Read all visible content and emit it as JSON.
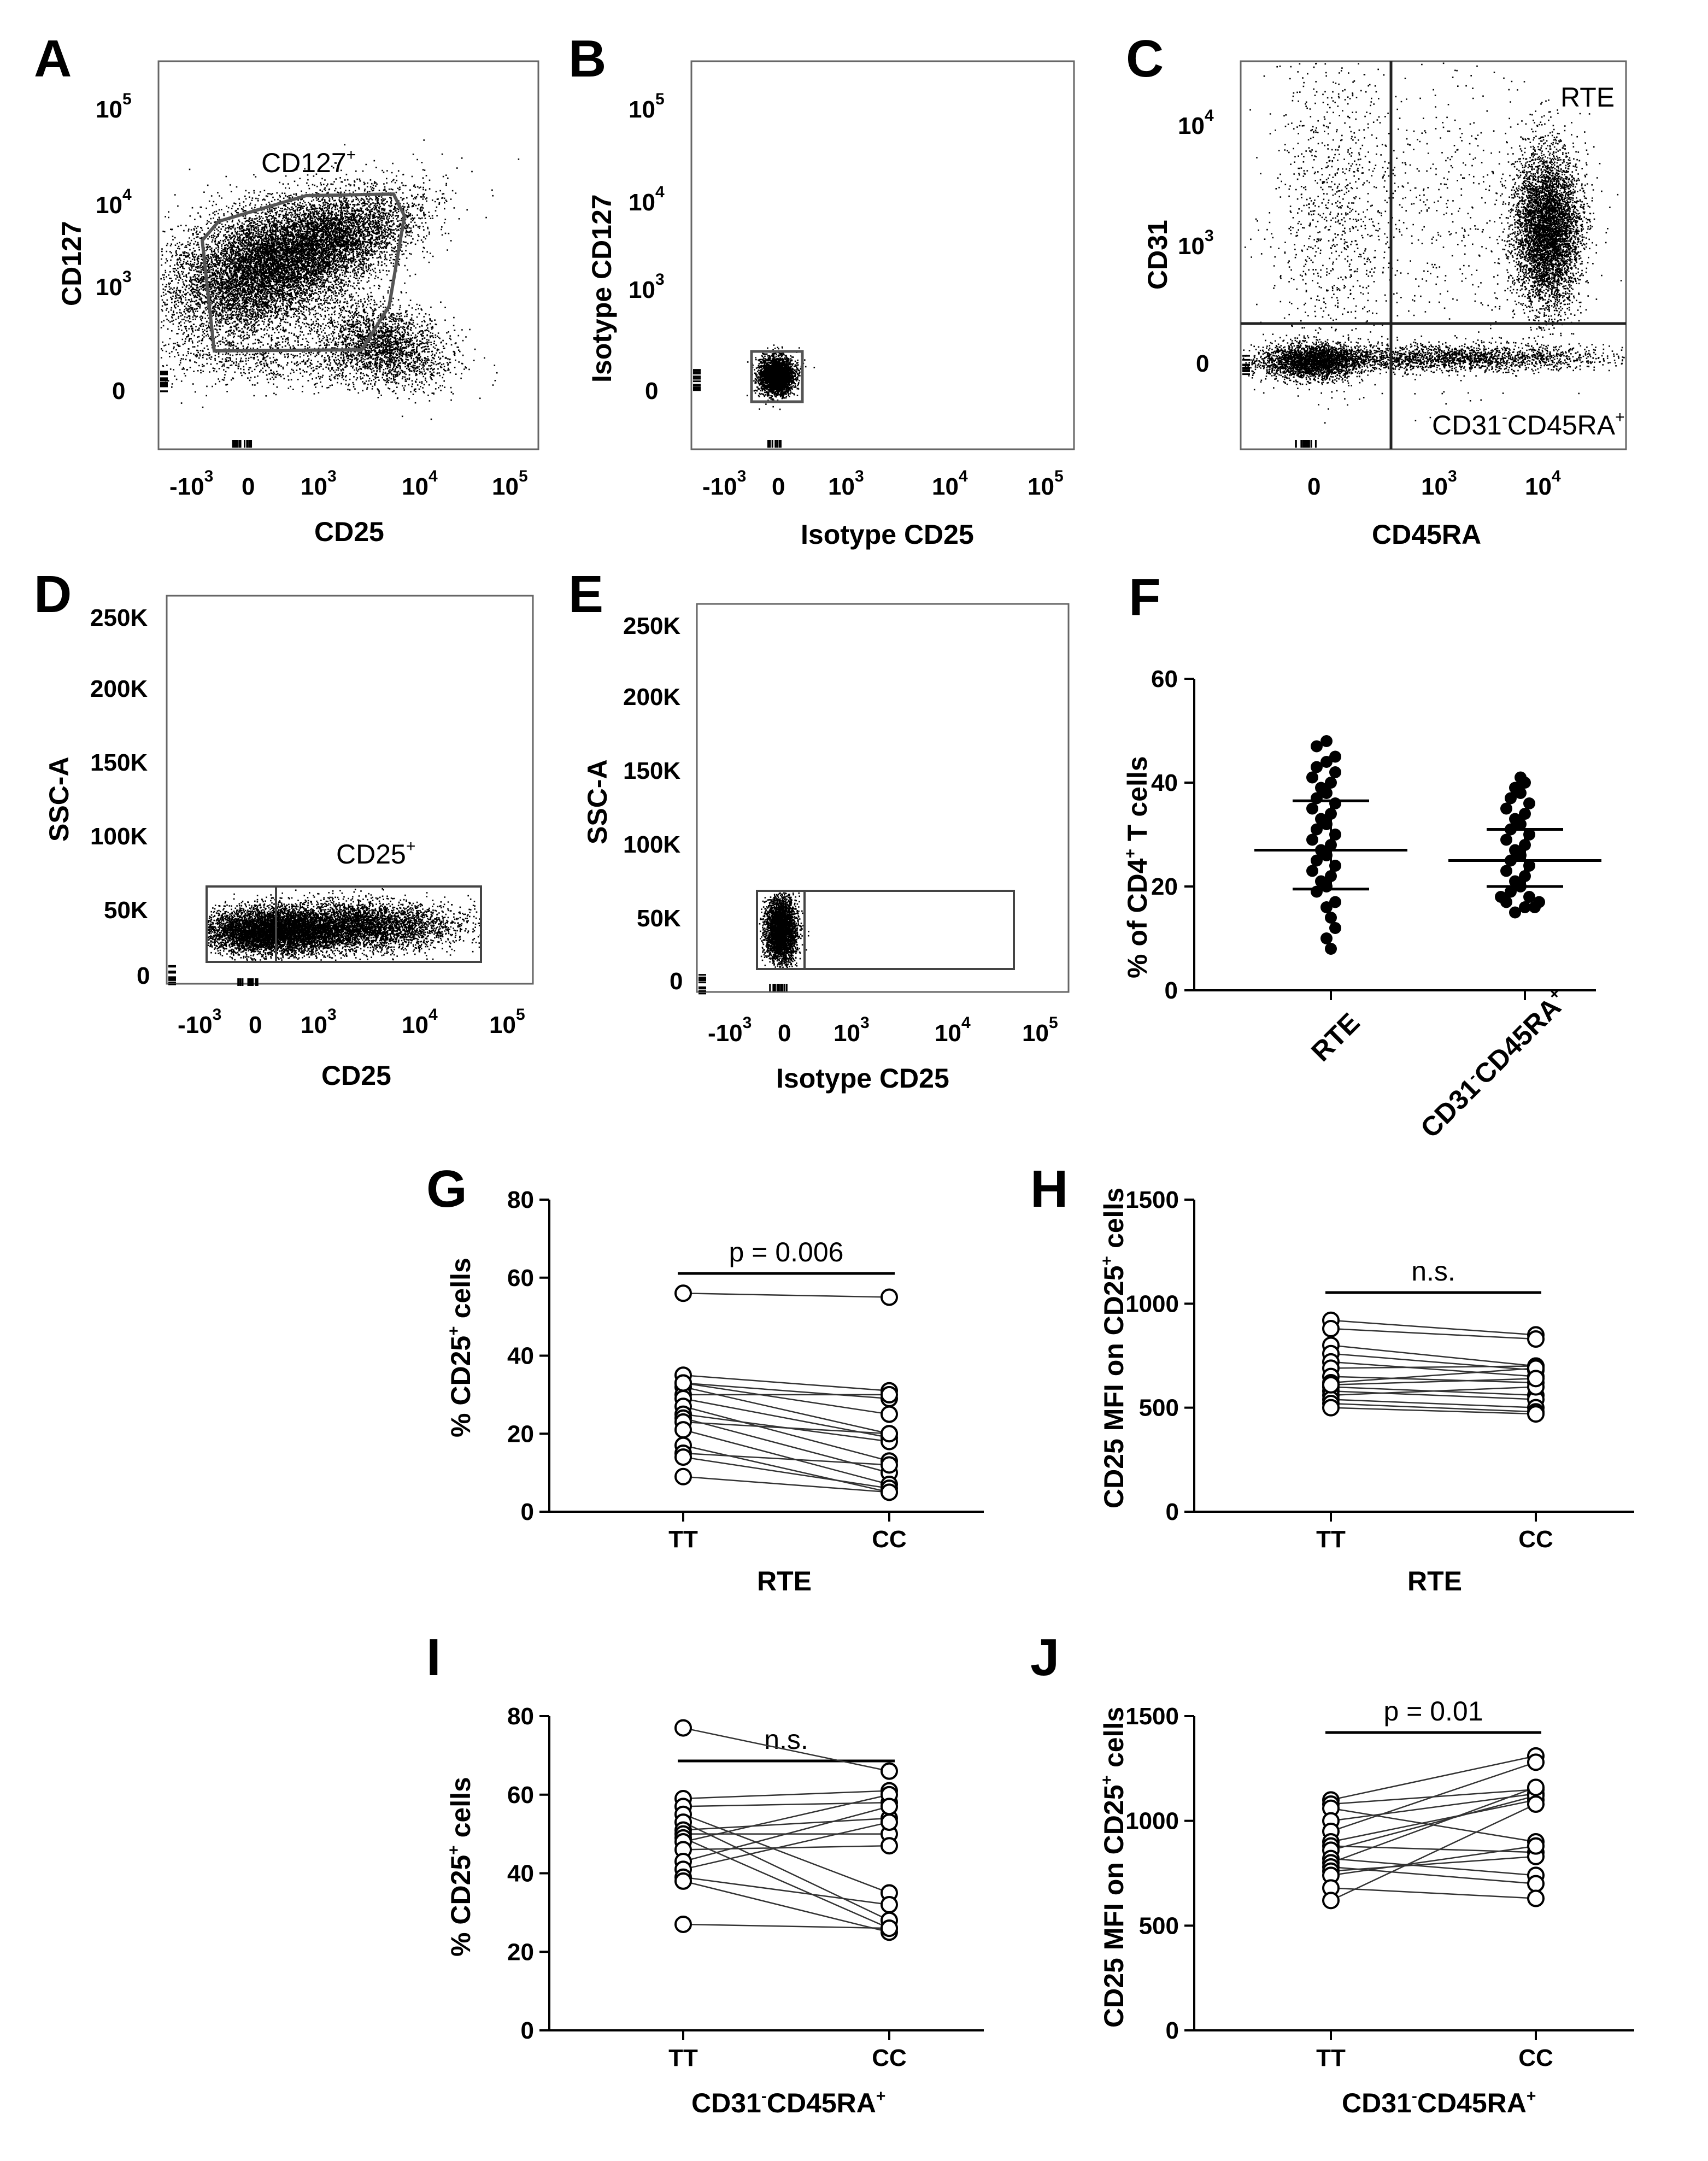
{
  "panel_letters": {
    "A": "A",
    "B": "B",
    "C": "C",
    "D": "D",
    "E": "E",
    "F": "F",
    "G": "G",
    "H": "H",
    "I": "I",
    "J": "J"
  },
  "flow": {
    "log_ticks": {
      "neg": "-10",
      "zero": "0",
      "ten": "10",
      "e3": "3",
      "e4": "4",
      "e5": "5"
    },
    "A": {
      "xlabel": "CD25",
      "ylabel": "CD127",
      "gate_label": "CD127",
      "gate_sup": "+"
    },
    "B": {
      "xlabel": "Isotype CD25",
      "ylabel": "Isotype CD127"
    },
    "C": {
      "xlabel": "CD45RA",
      "ylabel": "CD31",
      "quad_label_top": "RTE",
      "quad_label_bottom_a": "CD31",
      "quad_label_bottom_sup1": "-",
      "quad_label_bottom_b": "CD45RA",
      "quad_label_bottom_sup2": "+"
    },
    "D": {
      "xlabel": "CD25",
      "ylabel": "SSC-A",
      "gate_label": "CD25",
      "gate_sup": "+",
      "yticks": [
        "0",
        "50K",
        "100K",
        "150K",
        "200K",
        "250K"
      ]
    },
    "E": {
      "xlabel": "Isotype CD25",
      "ylabel": "SSC-A",
      "yticks": [
        "0",
        "50K",
        "100K",
        "150K",
        "200K",
        "250K"
      ]
    }
  },
  "chart_data": [
    {
      "panel": "F",
      "type": "scatter",
      "ylabel": "% of CD4+ T cells",
      "ylabel_a": "% of CD4",
      "ylabel_sup": "+",
      "ylabel_b": " T cells",
      "ylim": [
        0,
        60
      ],
      "yticks": [
        0,
        20,
        40,
        60
      ],
      "categories": [
        "RTE",
        "CD31-CD45RA+"
      ],
      "cat_label_rte": "RTE",
      "cat_label_b1": "CD31",
      "cat_label_b_sup1": "-",
      "cat_label_b2": "CD45RA",
      "cat_label_b_sup2": "+",
      "series": [
        {
          "name": "RTE",
          "values": [
            48,
            47,
            45,
            44,
            43,
            42,
            41,
            40,
            39,
            38,
            37,
            36,
            35,
            34,
            33,
            32,
            31,
            30,
            29,
            28,
            27,
            26,
            25,
            24,
            23,
            22,
            21,
            20,
            19,
            17,
            16,
            14,
            12,
            10,
            8
          ],
          "mean": 27,
          "sd_low": 19.5,
          "sd_high": 36.5
        },
        {
          "name": "CD31-CD45RA+",
          "values": [
            41,
            40,
            39,
            38,
            37,
            36,
            35,
            34,
            33,
            32,
            31,
            30,
            29,
            28,
            27,
            26,
            25,
            24,
            23,
            22,
            21,
            20,
            19,
            18,
            17,
            16,
            15,
            16,
            17,
            18
          ],
          "mean": 25,
          "sd_low": 20,
          "sd_high": 31
        }
      ]
    },
    {
      "panel": "G",
      "type": "line",
      "xlabel": "RTE",
      "ylabel_a": "% CD25",
      "ylabel_sup": "+",
      "ylabel_b": " cells",
      "categories": [
        "TT",
        "CC"
      ],
      "ylim": [
        0,
        80
      ],
      "yticks": [
        0,
        20,
        40,
        60,
        80
      ],
      "annotation": "p = 0.006",
      "pairs": [
        [
          56,
          55
        ],
        [
          35,
          31
        ],
        [
          33,
          29
        ],
        [
          32,
          20
        ],
        [
          30,
          30
        ],
        [
          29,
          19
        ],
        [
          27,
          13
        ],
        [
          25,
          18
        ],
        [
          24,
          10
        ],
        [
          23,
          20
        ],
        [
          21,
          7
        ],
        [
          17,
          5
        ],
        [
          15,
          12
        ],
        [
          14,
          6
        ],
        [
          9,
          5
        ],
        [
          33,
          25
        ]
      ]
    },
    {
      "panel": "H",
      "type": "line",
      "xlabel": "RTE",
      "ylabel_a": "CD25 MFI on CD25",
      "ylabel_sup": "+",
      "ylabel_b": " cells",
      "categories": [
        "TT",
        "CC"
      ],
      "ylim": [
        0,
        1500
      ],
      "yticks": [
        0,
        500,
        1000,
        1500
      ],
      "annotation": "n.s.",
      "pairs": [
        [
          920,
          850
        ],
        [
          880,
          830
        ],
        [
          800,
          700
        ],
        [
          760,
          680
        ],
        [
          720,
          650
        ],
        [
          690,
          700
        ],
        [
          650,
          620
        ],
        [
          620,
          690
        ],
        [
          600,
          560
        ],
        [
          580,
          540
        ],
        [
          560,
          600
        ],
        [
          540,
          500
        ],
        [
          520,
          480
        ],
        [
          500,
          470
        ],
        [
          610,
          640
        ]
      ]
    },
    {
      "panel": "I",
      "type": "line",
      "xlabel_a": "CD31",
      "xlabel_sup1": "-",
      "xlabel_b": "CD45RA",
      "xlabel_sup2": "+",
      "ylabel_a": "% CD25",
      "ylabel_sup": "+",
      "ylabel_b": " cells",
      "categories": [
        "TT",
        "CC"
      ],
      "ylim": [
        0,
        80
      ],
      "yticks": [
        0,
        20,
        40,
        60,
        80
      ],
      "annotation": "n.s.",
      "pairs": [
        [
          77,
          66
        ],
        [
          59,
          61
        ],
        [
          57,
          58
        ],
        [
          55,
          35
        ],
        [
          53,
          28
        ],
        [
          51,
          54
        ],
        [
          50,
          50
        ],
        [
          49,
          26
        ],
        [
          48,
          60
        ],
        [
          46,
          47
        ],
        [
          43,
          57
        ],
        [
          41,
          53
        ],
        [
          39,
          32
        ],
        [
          38,
          25
        ],
        [
          27,
          26
        ]
      ]
    },
    {
      "panel": "J",
      "type": "line",
      "xlabel_a": "CD31",
      "xlabel_sup1": "-",
      "xlabel_b": "CD45RA",
      "xlabel_sup2": "+",
      "ylabel_a": "CD25 MFI on CD25",
      "ylabel_sup": "+",
      "ylabel_b": " cells",
      "categories": [
        "TT",
        "CC"
      ],
      "ylim": [
        0,
        1500
      ],
      "yticks": [
        0,
        500,
        1000,
        1500
      ],
      "annotation": "p = 0.01",
      "pairs": [
        [
          1100,
          1310
        ],
        [
          1080,
          1150
        ],
        [
          1060,
          900
        ],
        [
          1000,
          1130
        ],
        [
          950,
          1280
        ],
        [
          900,
          1100
        ],
        [
          880,
          850
        ],
        [
          860,
          1120
        ],
        [
          820,
          740
        ],
        [
          800,
          1160
        ],
        [
          780,
          700
        ],
        [
          760,
          830
        ],
        [
          740,
          880
        ],
        [
          680,
          630
        ],
        [
          620,
          1080
        ]
      ]
    }
  ]
}
